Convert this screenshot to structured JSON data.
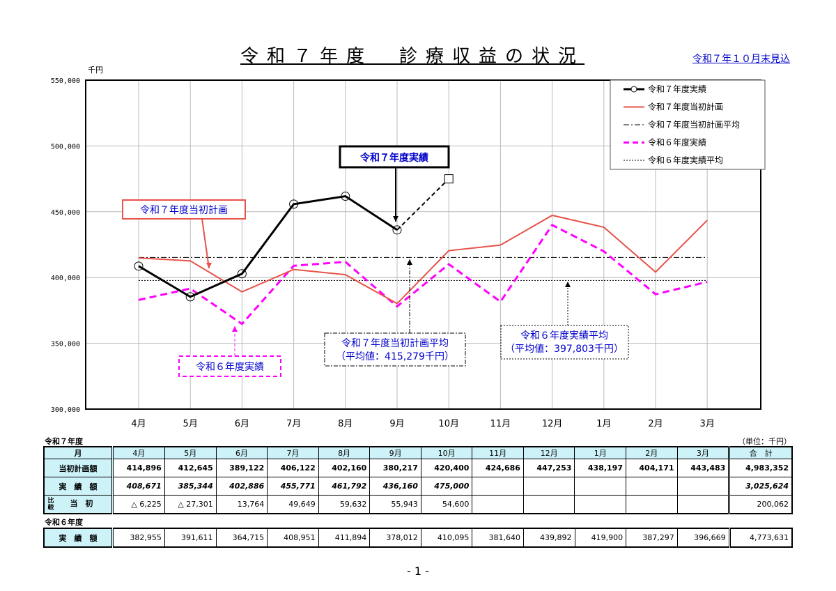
{
  "title": "令和７年度　診療収益の状況",
  "as_of": "令和７年１０月末見込",
  "unit_label_chart": "千円",
  "unit_label_table": "（単位：千円）",
  "page_number": "- 1 -",
  "chart_data": {
    "type": "line",
    "categories": [
      "4月",
      "5月",
      "6月",
      "7月",
      "8月",
      "9月",
      "10月",
      "11月",
      "12月",
      "1月",
      "2月",
      "3月"
    ],
    "ylim": [
      300000,
      550000
    ],
    "yticks": [
      "300,000",
      "350,000",
      "400,000",
      "450,000",
      "500,000",
      "550,000"
    ],
    "ytick_values": [
      300000,
      350000,
      400000,
      450000,
      500000,
      550000
    ],
    "grid": true,
    "legend_placement": "top-right",
    "series": [
      {
        "name": "令和７年度実績",
        "color": "#000000",
        "style": "solid-circle",
        "values": [
          408671,
          385344,
          402886,
          455771,
          461792,
          436160,
          475000,
          null,
          null,
          null,
          null,
          null
        ],
        "forecast_from_index": 6
      },
      {
        "name": "令和７年度当初計画",
        "color": "#e8524a",
        "style": "solid",
        "values": [
          414896,
          412645,
          389122,
          406122,
          402160,
          380217,
          420400,
          424686,
          447253,
          438197,
          404171,
          443483
        ]
      },
      {
        "name": "令和７年度当初計画平均",
        "color": "#000000",
        "style": "dashdot",
        "value": 415279
      },
      {
        "name": "令和６年度実績",
        "color": "#ff00ff",
        "style": "dashed",
        "values": [
          382955,
          391611,
          364715,
          408951,
          411894,
          378012,
          410095,
          381640,
          439892,
          419900,
          387297,
          396669
        ]
      },
      {
        "name": "令和６年度実績平均",
        "color": "#000000",
        "style": "dotted",
        "value": 397803
      }
    ],
    "annotations": {
      "actual": "令和７年度実績",
      "plan": "令和７年度当初計画",
      "plan_avg_1": "令和７年度当初計画平均",
      "plan_avg_2": "（平均値：415,279千円）",
      "prev_avg_1": "令和６年度実績平均",
      "prev_avg_2": "（平均値：397,803千円）",
      "prev": "令和６年度実績"
    }
  },
  "table": {
    "r7_label": "令和７年度",
    "r6_label": "令和６年度",
    "header": [
      "月",
      "4月",
      "5月",
      "6月",
      "7月",
      "8月",
      "9月",
      "10月",
      "11月",
      "12月",
      "1月",
      "2月",
      "3月",
      "合　計"
    ],
    "rows": [
      {
        "label": "当初計画額",
        "cells": [
          "414,896",
          "412,645",
          "389,122",
          "406,122",
          "402,160",
          "380,217",
          "420,400",
          "424,686",
          "447,253",
          "438,197",
          "404,171",
          "443,483",
          "4,983,352"
        ]
      },
      {
        "label": "実　績　額",
        "cells": [
          "408,671",
          "385,344",
          "402,886",
          "455,771",
          "461,792",
          "436,160",
          "475,000",
          "",
          "",
          "",
          "",
          "",
          "3,025,624"
        ]
      },
      {
        "label_side": "比較",
        "label": "当　初",
        "cells": [
          "△ 6,225",
          "△ 27,301",
          "13,764",
          "49,649",
          "59,632",
          "55,943",
          "54,600",
          "",
          "",
          "",
          "",
          "",
          "200,062"
        ]
      }
    ],
    "r6_row": {
      "label": "実　績　額",
      "cells": [
        "382,955",
        "391,611",
        "364,715",
        "408,951",
        "411,894",
        "378,012",
        "410,095",
        "381,640",
        "439,892",
        "419,900",
        "387,297",
        "396,669",
        "4,773,631"
      ]
    }
  }
}
